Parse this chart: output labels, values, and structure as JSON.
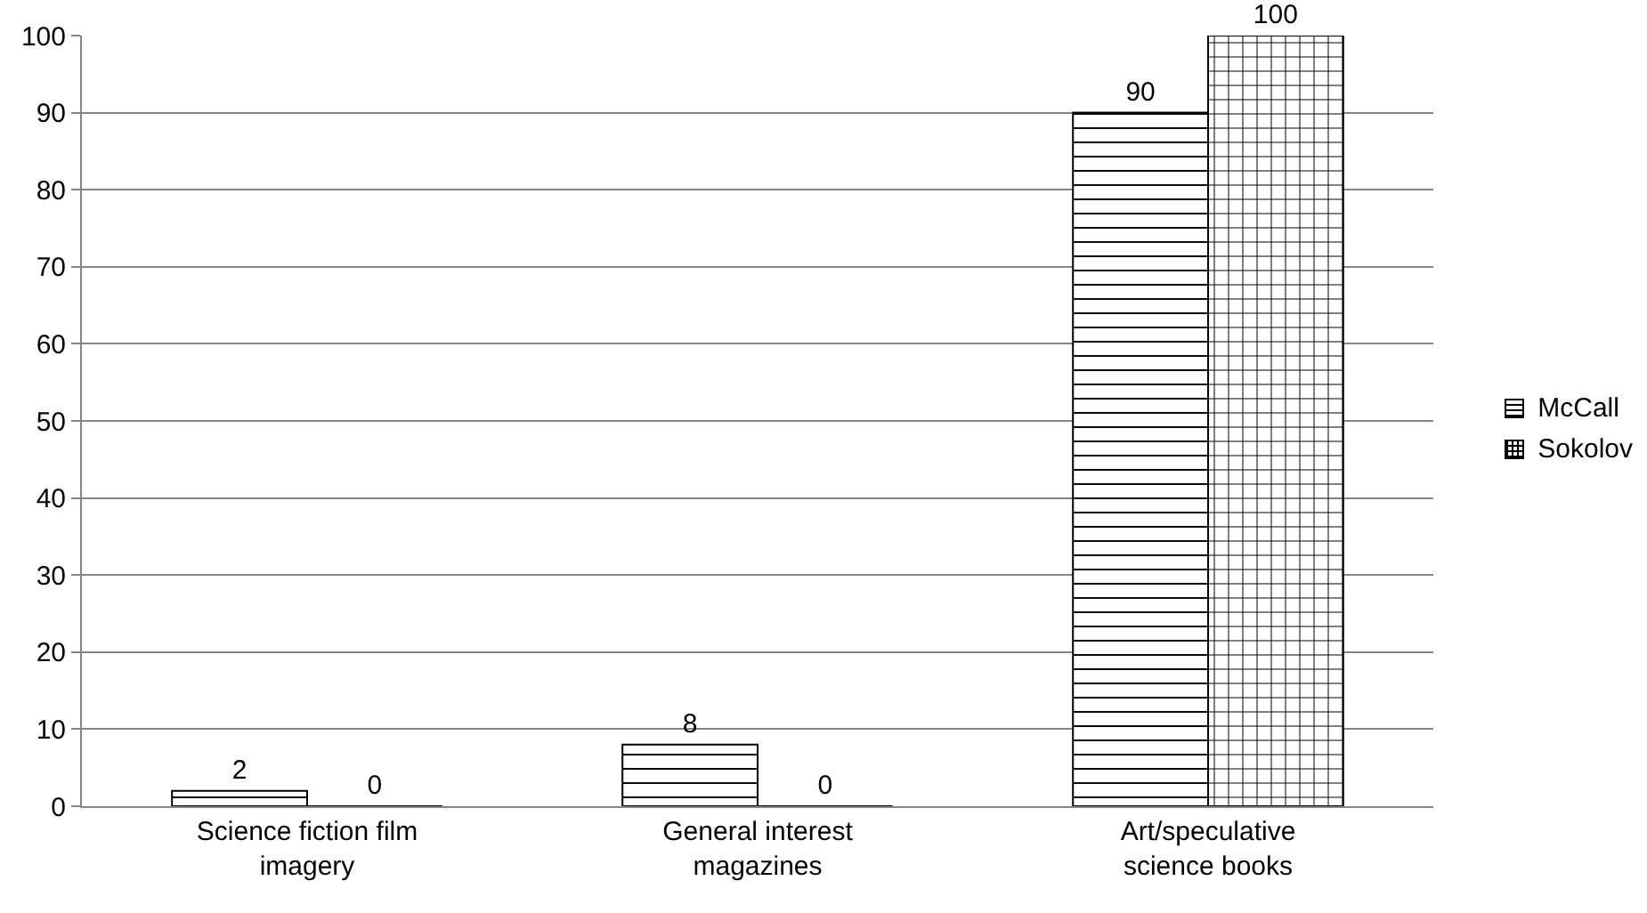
{
  "chart_data": {
    "type": "bar",
    "categories": [
      "Science fiction film imagery",
      "General interest magazines",
      "Art/speculative science books"
    ],
    "series": [
      {
        "name": "McCall",
        "color": "#000000",
        "values": [
          2,
          8,
          90
        ]
      },
      {
        "name": "Sokolov",
        "color": "#000000",
        "values": [
          0,
          0,
          100
        ]
      }
    ],
    "ylim": [
      0,
      100
    ],
    "yticks": [
      0,
      10,
      20,
      30,
      40,
      50,
      60,
      70,
      80,
      90,
      100
    ],
    "grid": "y",
    "legend": "right",
    "data_labels": true
  }
}
